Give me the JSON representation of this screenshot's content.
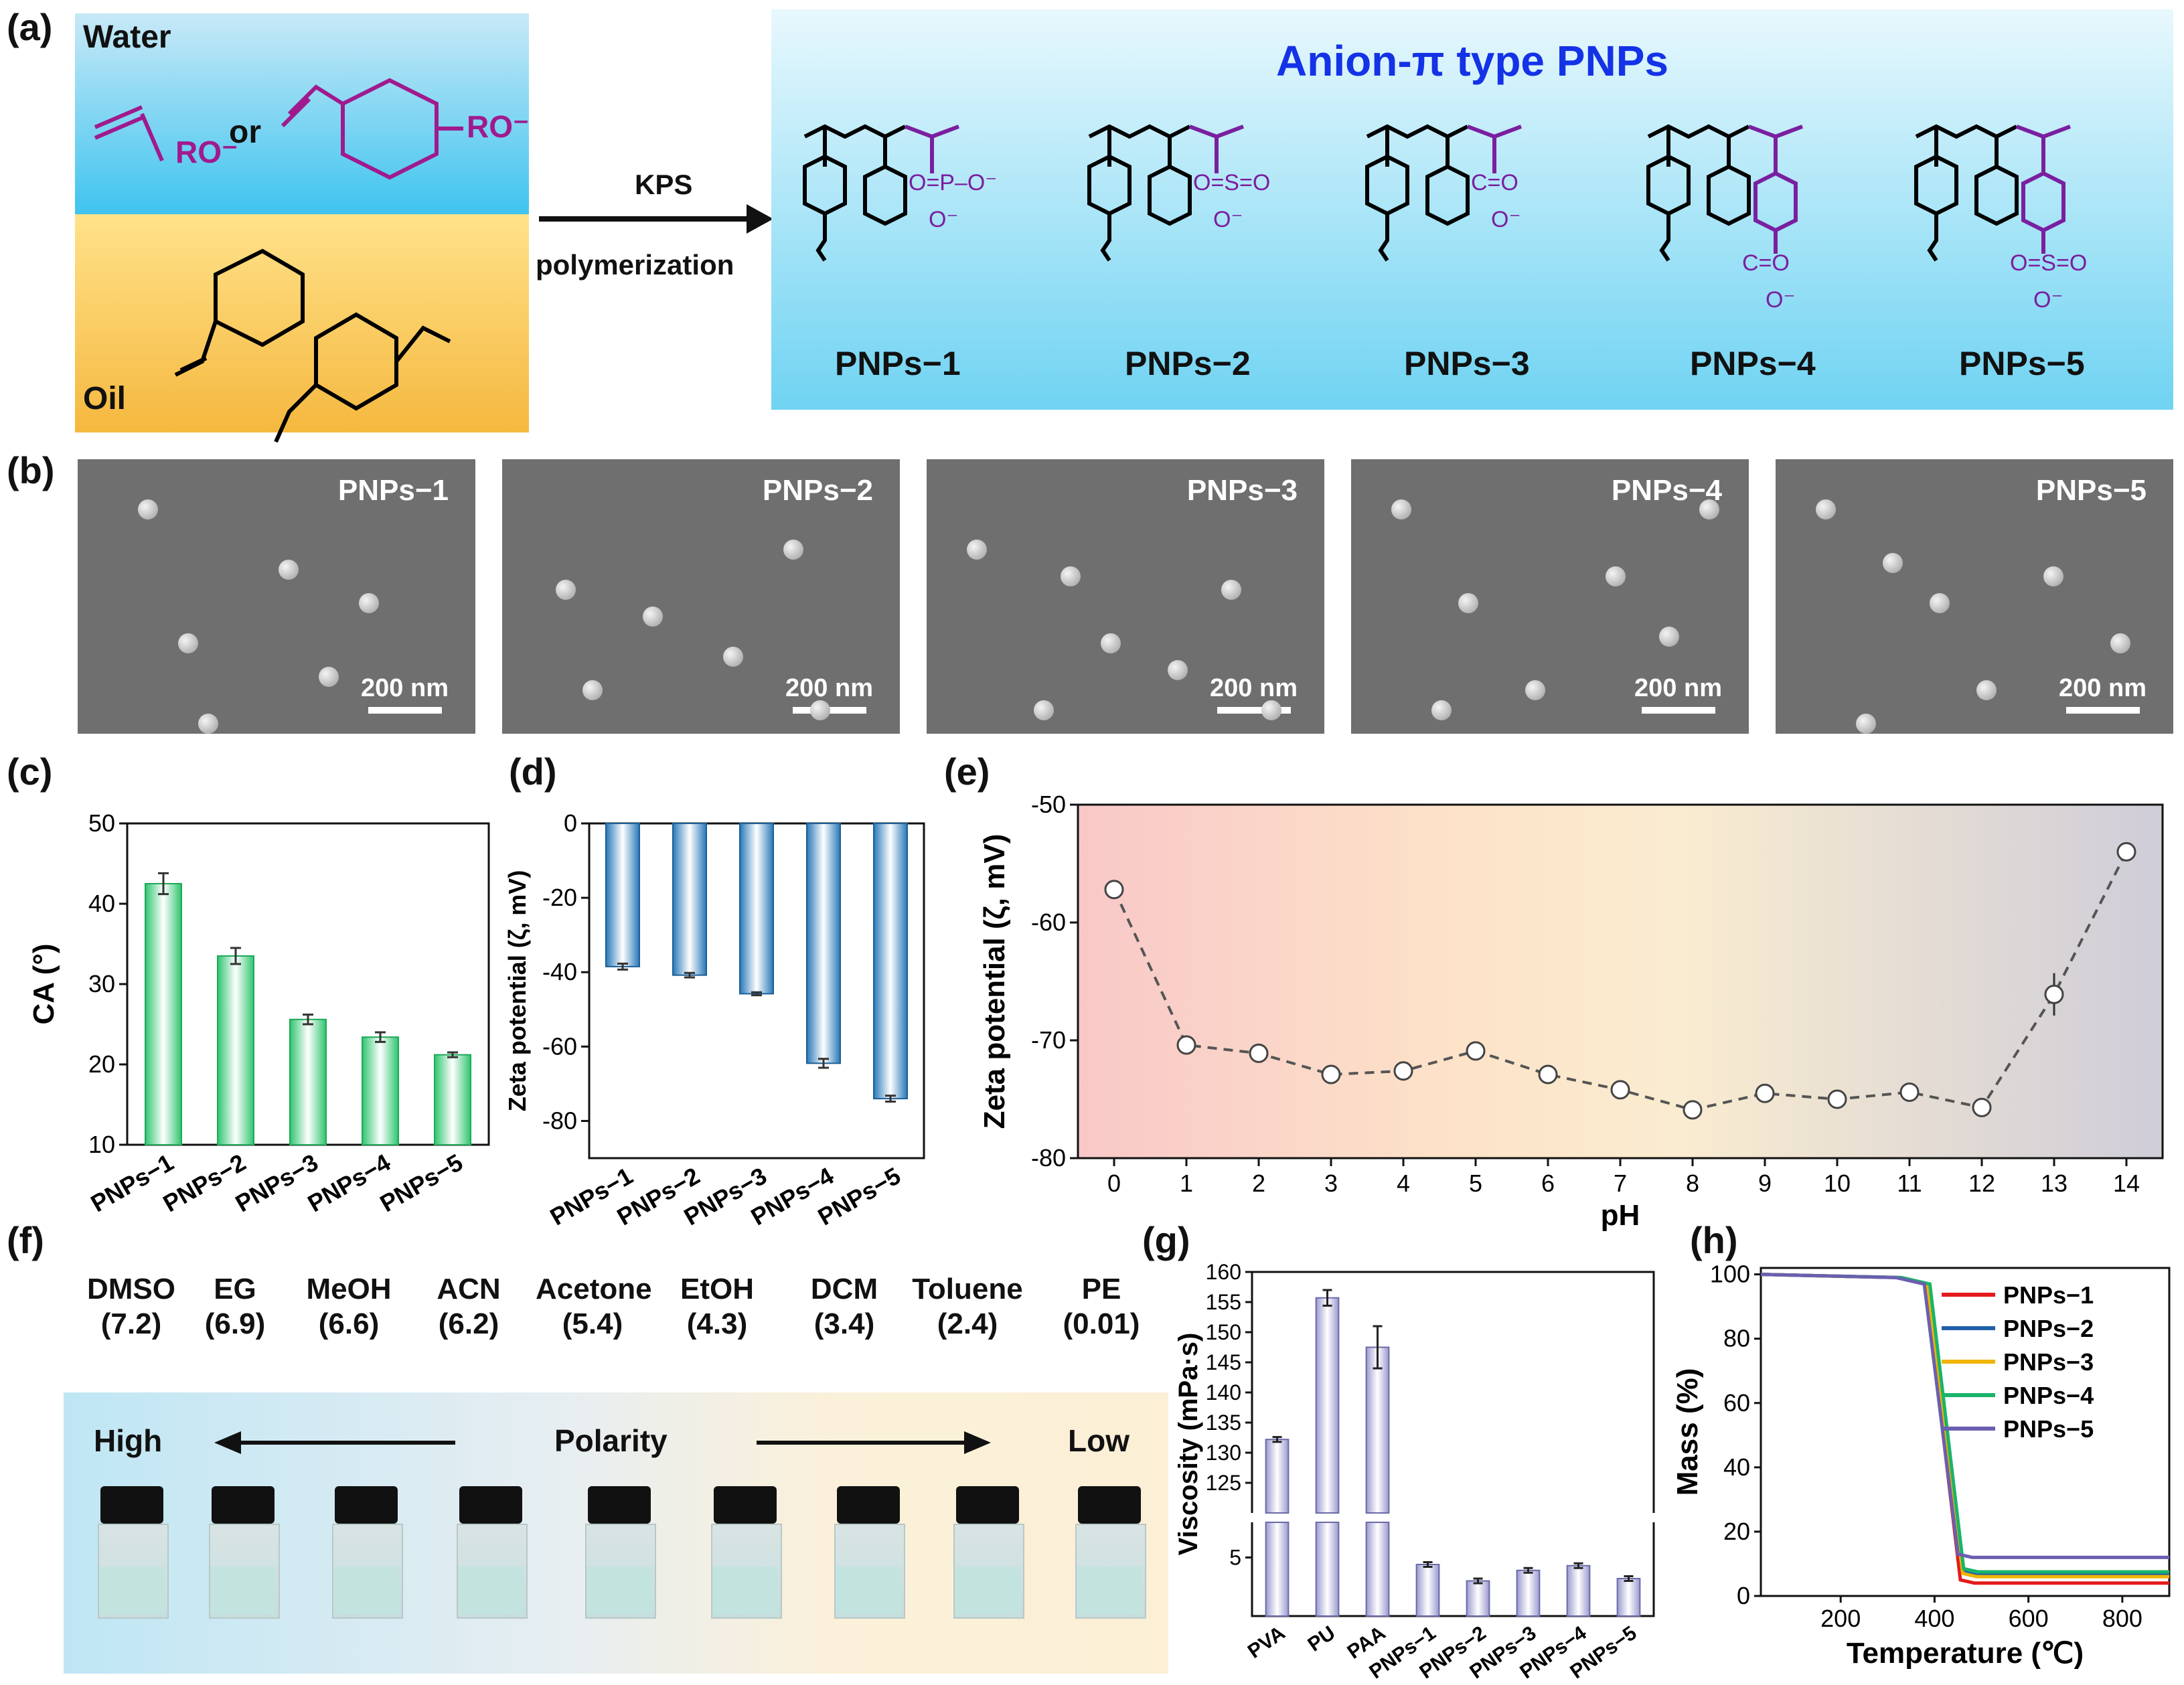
{
  "panels": {
    "a": "(a)",
    "b": "(b)",
    "c": "(c)",
    "d": "(d)",
    "e": "(e)",
    "f": "(f)",
    "g": "(g)",
    "h": "(h)"
  },
  "panel_a": {
    "water": "Water",
    "oil": "Oil",
    "or": "or",
    "ro_minus": "RO⁻",
    "arrow_top": "KPS",
    "arrow_bottom": "polymerization",
    "title": "Anion-π type PNPs",
    "structure_labels": [
      "PNPs−1",
      "PNPs−2",
      "PNPs−3",
      "PNPs−4",
      "PNPs−5"
    ],
    "groups": [
      "O=P–O⁻ / O⁻",
      "O=S=O / O⁻",
      "C=O / O⁻",
      "C=O / O⁻",
      "O=S=O / O⁻"
    ]
  },
  "panel_b": {
    "images": [
      {
        "label": "PNPs−1",
        "scale": "200 nm"
      },
      {
        "label": "PNPs−2",
        "scale": "200 nm"
      },
      {
        "label": "PNPs−3",
        "scale": "200 nm"
      },
      {
        "label": "PNPs−4",
        "scale": "200 nm"
      },
      {
        "label": "PNPs−5",
        "scale": "200 nm"
      }
    ]
  },
  "panel_f": {
    "solvents": [
      {
        "name": "DMSO",
        "polarity": "(7.2)"
      },
      {
        "name": "EG",
        "polarity": "(6.9)"
      },
      {
        "name": "MeOH",
        "polarity": "(6.6)"
      },
      {
        "name": "ACN",
        "polarity": "(6.2)"
      },
      {
        "name": "Acetone",
        "polarity": "(5.4)"
      },
      {
        "name": "EtOH",
        "polarity": "(4.3)"
      },
      {
        "name": "DCM",
        "polarity": "(3.4)"
      },
      {
        "name": "Toluene",
        "polarity": "(2.4)"
      },
      {
        "name": "PE",
        "polarity": "(0.01)"
      }
    ],
    "high": "High",
    "polarity": "Polarity",
    "low": "Low"
  },
  "chart_data": [
    {
      "id": "c",
      "type": "bar",
      "categories": [
        "PNPs−1",
        "PNPs−2",
        "PNPs−3",
        "PNPs−4",
        "PNPs−5"
      ],
      "values": [
        42.5,
        33.5,
        25.6,
        23.4,
        21.2
      ],
      "errors": [
        1.3,
        1.0,
        0.6,
        0.6,
        0.3
      ],
      "ylabel": "CA (°)",
      "ylim": [
        10,
        50
      ],
      "yticks": [
        10,
        20,
        30,
        40,
        50
      ],
      "color": "#2fc56f"
    },
    {
      "id": "d",
      "type": "bar",
      "categories": [
        "PNPs−1",
        "PNPs−2",
        "PNPs−3",
        "PNPs−4",
        "PNPs−5"
      ],
      "values": [
        -38.5,
        -40.8,
        -45.8,
        -64.5,
        -74.0
      ],
      "errors": [
        0.8,
        0.6,
        0.4,
        1.2,
        0.8
      ],
      "ylabel": "Zeta potential (ζ, mV)",
      "ylim": [
        -90,
        0
      ],
      "yticks": [
        0,
        -20,
        -40,
        -60,
        -80
      ],
      "color": "#2878b8"
    },
    {
      "id": "e",
      "type": "line",
      "x": [
        0,
        1,
        2,
        3,
        4,
        5,
        6,
        7,
        8,
        9,
        10,
        11,
        12,
        13,
        14
      ],
      "y": [
        -57.2,
        -70.4,
        -71.1,
        -72.9,
        -72.6,
        -70.9,
        -72.9,
        -74.2,
        -75.9,
        -74.5,
        -75.0,
        -74.4,
        -75.7,
        -66.1,
        -54.0
      ],
      "errors": [
        0.3,
        0.4,
        0.6,
        0.4,
        0.4,
        0.4,
        0.5,
        0.7,
        0.7,
        0.7,
        0.5,
        0.4,
        0.3,
        1.8,
        0.3
      ],
      "xlabel": "pH",
      "ylabel": "Zeta potential (ζ, mV)",
      "xlim": [
        -0.5,
        14.5
      ],
      "ylim": [
        -80,
        -50
      ],
      "xticks": [
        0,
        1,
        2,
        3,
        4,
        5,
        6,
        7,
        8,
        9,
        10,
        11,
        12,
        13,
        14
      ],
      "yticks": [
        -50,
        -60,
        -70,
        -80
      ]
    },
    {
      "id": "g",
      "type": "bar",
      "categories": [
        "PVA",
        "PU",
        "PAA",
        "PNPs−1",
        "PNPs−2",
        "PNPs−3",
        "PNPs−4",
        "PNPs−5"
      ],
      "values": [
        132.2,
        155.7,
        147.5,
        4.4,
        3.0,
        3.9,
        4.3,
        3.2
      ],
      "errors": [
        0.4,
        1.3,
        3.5,
        0.2,
        0.2,
        0.2,
        0.2,
        0.2
      ],
      "ylabel": "Viscosity (mPa·s)",
      "yticks_upper": [
        125,
        130,
        135,
        140,
        145,
        150,
        155,
        160
      ],
      "yticks_lower": [
        5
      ],
      "color": "#9a9ad0"
    },
    {
      "id": "h",
      "type": "line",
      "xlabel": "Temperature (℃)",
      "ylabel": "Mass (%)",
      "xlim": [
        30,
        900
      ],
      "ylim": [
        0,
        102
      ],
      "xticks": [
        200,
        400,
        600,
        800
      ],
      "yticks": [
        0,
        20,
        40,
        60,
        80,
        100
      ],
      "series": [
        {
          "name": "PNPs−1",
          "color": "#e41a1c",
          "onset": 380,
          "end": 455,
          "residue": 4.0
        },
        {
          "name": "PNPs−2",
          "color": "#1f5fa8",
          "onset": 385,
          "end": 460,
          "residue": 6.5
        },
        {
          "name": "PNPs−3",
          "color": "#f0b400",
          "onset": 385,
          "end": 460,
          "residue": 6.0
        },
        {
          "name": "PNPs−4",
          "color": "#19b46a",
          "onset": 390,
          "end": 462,
          "residue": 7.5
        },
        {
          "name": "PNPs−5",
          "color": "#6a5fb0",
          "onset": 378,
          "end": 450,
          "residue": 12.0
        }
      ]
    }
  ]
}
